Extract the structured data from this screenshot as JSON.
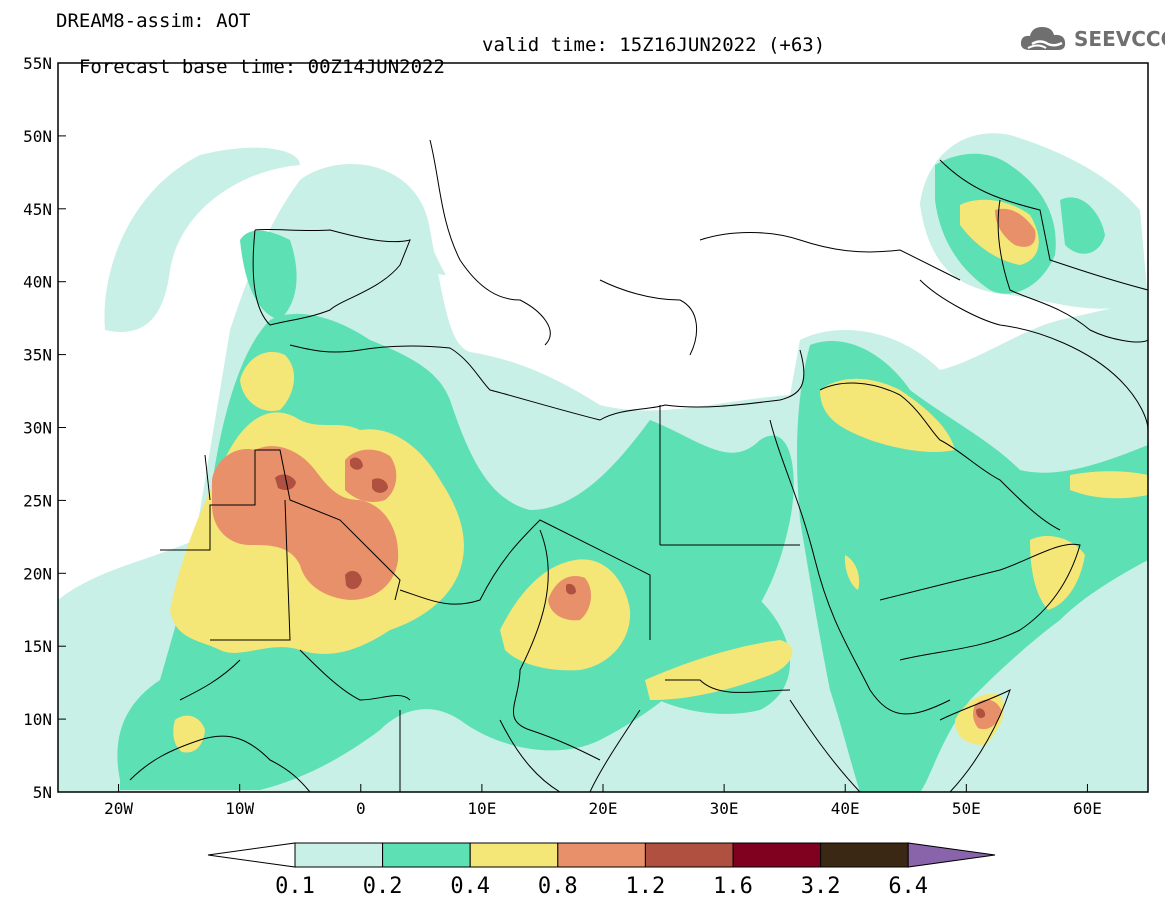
{
  "title": {
    "line1": "DREAM8-assim: AOT",
    "base_time": "Forecast base time: 00Z14JUN2022",
    "valid_time": "valid time: 15Z16JUN2022 (+63)"
  },
  "logo": {
    "text": "SEEVCCC",
    "icon": "cloud-icon"
  },
  "map": {
    "lat_labels": [
      "55N",
      "50N",
      "45N",
      "40N",
      "35N",
      "30N",
      "25N",
      "20N",
      "15N",
      "10N",
      "5N"
    ],
    "lat_values": [
      55,
      50,
      45,
      40,
      35,
      30,
      25,
      20,
      15,
      10,
      5
    ],
    "lon_labels": [
      "20W",
      "10W",
      "0",
      "10E",
      "20E",
      "30E",
      "40E",
      "50E",
      "60E"
    ],
    "lon_values": [
      -20,
      -10,
      0,
      10,
      20,
      30,
      40,
      50,
      60
    ],
    "extent": {
      "lon_min": -25,
      "lon_max": 65,
      "lat_min": 5,
      "lat_max": 55
    }
  },
  "colorbar": {
    "labels": [
      "0.1",
      "0.2",
      "0.4",
      "0.8",
      "1.2",
      "1.6",
      "3.2",
      "6.4"
    ],
    "colors": [
      "#c8f0e6",
      "#5ce0b4",
      "#f5e678",
      "#e8906a",
      "#b05040",
      "#800020",
      "#3a2814"
    ],
    "under_color": "#ffffff",
    "over_color": "#8a64aa"
  }
}
